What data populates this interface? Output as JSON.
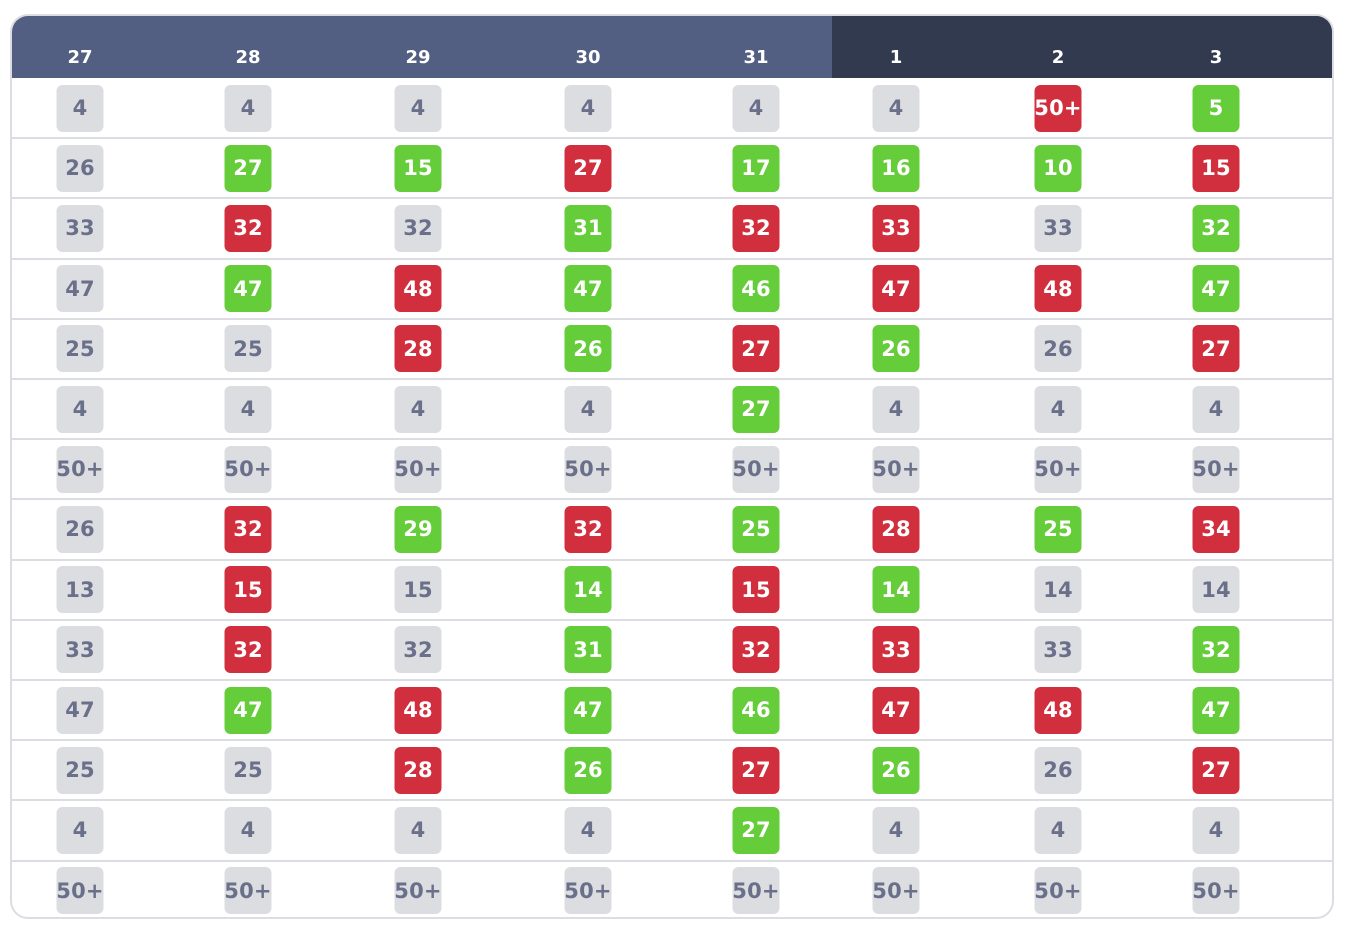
{
  "colors": {
    "header_light": "#525e82",
    "header_dark": "#323a4f",
    "neutral": "#dcdde0",
    "neutral_text": "#6a6f8a",
    "up": "#65cc3a",
    "down": "#d22f3e",
    "border": "#dcdde2"
  },
  "header": {
    "days": [
      "27",
      "28",
      "29",
      "30",
      "31",
      "1",
      "2",
      "3"
    ]
  },
  "rows": [
    [
      {
        "v": "4",
        "s": "gray"
      },
      {
        "v": "4",
        "s": "gray"
      },
      {
        "v": "4",
        "s": "gray"
      },
      {
        "v": "4",
        "s": "gray"
      },
      {
        "v": "4",
        "s": "gray"
      },
      {
        "v": "4",
        "s": "gray"
      },
      {
        "v": "50+",
        "s": "red"
      },
      {
        "v": "5",
        "s": "green"
      }
    ],
    [
      {
        "v": "26",
        "s": "gray"
      },
      {
        "v": "27",
        "s": "green"
      },
      {
        "v": "15",
        "s": "green"
      },
      {
        "v": "27",
        "s": "red"
      },
      {
        "v": "17",
        "s": "green"
      },
      {
        "v": "16",
        "s": "green"
      },
      {
        "v": "10",
        "s": "green"
      },
      {
        "v": "15",
        "s": "red"
      }
    ],
    [
      {
        "v": "33",
        "s": "gray"
      },
      {
        "v": "32",
        "s": "red"
      },
      {
        "v": "32",
        "s": "gray"
      },
      {
        "v": "31",
        "s": "green"
      },
      {
        "v": "32",
        "s": "red"
      },
      {
        "v": "33",
        "s": "red"
      },
      {
        "v": "33",
        "s": "gray"
      },
      {
        "v": "32",
        "s": "green"
      }
    ],
    [
      {
        "v": "47",
        "s": "gray"
      },
      {
        "v": "47",
        "s": "green"
      },
      {
        "v": "48",
        "s": "red"
      },
      {
        "v": "47",
        "s": "green"
      },
      {
        "v": "46",
        "s": "green"
      },
      {
        "v": "47",
        "s": "red"
      },
      {
        "v": "48",
        "s": "red"
      },
      {
        "v": "47",
        "s": "green"
      }
    ],
    [
      {
        "v": "25",
        "s": "gray"
      },
      {
        "v": "25",
        "s": "gray"
      },
      {
        "v": "28",
        "s": "red"
      },
      {
        "v": "26",
        "s": "green"
      },
      {
        "v": "27",
        "s": "red"
      },
      {
        "v": "26",
        "s": "green"
      },
      {
        "v": "26",
        "s": "gray"
      },
      {
        "v": "27",
        "s": "red"
      }
    ],
    [
      {
        "v": "4",
        "s": "gray"
      },
      {
        "v": "4",
        "s": "gray"
      },
      {
        "v": "4",
        "s": "gray"
      },
      {
        "v": "4",
        "s": "gray"
      },
      {
        "v": "27",
        "s": "green"
      },
      {
        "v": "4",
        "s": "gray"
      },
      {
        "v": "4",
        "s": "gray"
      },
      {
        "v": "4",
        "s": "gray"
      }
    ],
    [
      {
        "v": "50+",
        "s": "gray"
      },
      {
        "v": "50+",
        "s": "gray"
      },
      {
        "v": "50+",
        "s": "gray"
      },
      {
        "v": "50+",
        "s": "gray"
      },
      {
        "v": "50+",
        "s": "gray"
      },
      {
        "v": "50+",
        "s": "gray"
      },
      {
        "v": "50+",
        "s": "gray"
      },
      {
        "v": "50+",
        "s": "gray"
      }
    ],
    [
      {
        "v": "26",
        "s": "gray"
      },
      {
        "v": "32",
        "s": "red"
      },
      {
        "v": "29",
        "s": "green"
      },
      {
        "v": "32",
        "s": "red"
      },
      {
        "v": "25",
        "s": "green"
      },
      {
        "v": "28",
        "s": "red"
      },
      {
        "v": "25",
        "s": "green"
      },
      {
        "v": "34",
        "s": "red"
      }
    ],
    [
      {
        "v": "13",
        "s": "gray"
      },
      {
        "v": "15",
        "s": "red"
      },
      {
        "v": "15",
        "s": "gray"
      },
      {
        "v": "14",
        "s": "green"
      },
      {
        "v": "15",
        "s": "red"
      },
      {
        "v": "14",
        "s": "green"
      },
      {
        "v": "14",
        "s": "gray"
      },
      {
        "v": "14",
        "s": "gray"
      }
    ],
    [
      {
        "v": "33",
        "s": "gray"
      },
      {
        "v": "32",
        "s": "red"
      },
      {
        "v": "32",
        "s": "gray"
      },
      {
        "v": "31",
        "s": "green"
      },
      {
        "v": "32",
        "s": "red"
      },
      {
        "v": "33",
        "s": "red"
      },
      {
        "v": "33",
        "s": "gray"
      },
      {
        "v": "32",
        "s": "green"
      }
    ],
    [
      {
        "v": "47",
        "s": "gray"
      },
      {
        "v": "47",
        "s": "green"
      },
      {
        "v": "48",
        "s": "red"
      },
      {
        "v": "47",
        "s": "green"
      },
      {
        "v": "46",
        "s": "green"
      },
      {
        "v": "47",
        "s": "red"
      },
      {
        "v": "48",
        "s": "red"
      },
      {
        "v": "47",
        "s": "green"
      }
    ],
    [
      {
        "v": "25",
        "s": "gray"
      },
      {
        "v": "25",
        "s": "gray"
      },
      {
        "v": "28",
        "s": "red"
      },
      {
        "v": "26",
        "s": "green"
      },
      {
        "v": "27",
        "s": "red"
      },
      {
        "v": "26",
        "s": "green"
      },
      {
        "v": "26",
        "s": "gray"
      },
      {
        "v": "27",
        "s": "red"
      }
    ],
    [
      {
        "v": "4",
        "s": "gray"
      },
      {
        "v": "4",
        "s": "gray"
      },
      {
        "v": "4",
        "s": "gray"
      },
      {
        "v": "4",
        "s": "gray"
      },
      {
        "v": "27",
        "s": "green"
      },
      {
        "v": "4",
        "s": "gray"
      },
      {
        "v": "4",
        "s": "gray"
      },
      {
        "v": "4",
        "s": "gray"
      }
    ],
    [
      {
        "v": "50+",
        "s": "gray"
      },
      {
        "v": "50+",
        "s": "gray"
      },
      {
        "v": "50+",
        "s": "gray"
      },
      {
        "v": "50+",
        "s": "gray"
      },
      {
        "v": "50+",
        "s": "gray"
      },
      {
        "v": "50+",
        "s": "gray"
      },
      {
        "v": "50+",
        "s": "gray"
      },
      {
        "v": "50+",
        "s": "gray"
      }
    ]
  ]
}
